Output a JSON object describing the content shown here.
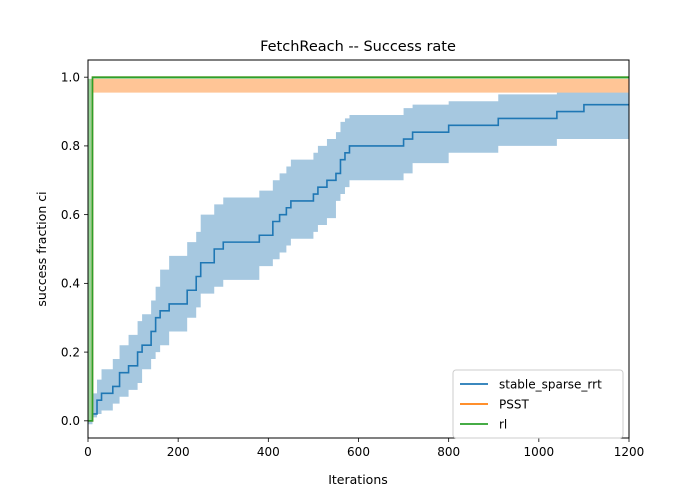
{
  "chart_data": {
    "type": "line",
    "title": "FetchReach -- Success rate",
    "xlabel": "Iterations",
    "ylabel": "success fraction ci",
    "xlim": [
      0,
      1200
    ],
    "ylim": [
      -0.05,
      1.05
    ],
    "xticks": [
      0,
      200,
      400,
      600,
      800,
      1000,
      1200
    ],
    "yticks": [
      0.0,
      0.2,
      0.4,
      0.6,
      0.8,
      1.0
    ],
    "xtick_labels": [
      "0",
      "200",
      "400",
      "600",
      "800",
      "1000",
      "1200"
    ],
    "ytick_labels": [
      "0.0",
      "0.2",
      "0.4",
      "0.6",
      "0.8",
      "1.0"
    ],
    "grid": false,
    "legend_position": "lower-right",
    "series": [
      {
        "name": "stable_sparse_rrt",
        "color": "#1f77b4",
        "band_color": "#a6c8e0",
        "step": true,
        "points": [
          [
            0,
            0.0
          ],
          [
            10,
            0.02
          ],
          [
            20,
            0.06
          ],
          [
            30,
            0.08
          ],
          [
            55,
            0.1
          ],
          [
            70,
            0.14
          ],
          [
            90,
            0.16
          ],
          [
            110,
            0.2
          ],
          [
            120,
            0.22
          ],
          [
            140,
            0.26
          ],
          [
            150,
            0.3
          ],
          [
            160,
            0.32
          ],
          [
            180,
            0.34
          ],
          [
            220,
            0.38
          ],
          [
            240,
            0.42
          ],
          [
            250,
            0.46
          ],
          [
            280,
            0.5
          ],
          [
            300,
            0.52
          ],
          [
            380,
            0.54
          ],
          [
            410,
            0.58
          ],
          [
            425,
            0.6
          ],
          [
            440,
            0.62
          ],
          [
            450,
            0.64
          ],
          [
            500,
            0.66
          ],
          [
            510,
            0.68
          ],
          [
            530,
            0.7
          ],
          [
            550,
            0.72
          ],
          [
            560,
            0.76
          ],
          [
            570,
            0.78
          ],
          [
            580,
            0.8
          ],
          [
            700,
            0.82
          ],
          [
            720,
            0.84
          ],
          [
            800,
            0.86
          ],
          [
            910,
            0.88
          ],
          [
            1040,
            0.9
          ],
          [
            1100,
            0.92
          ],
          [
            1200,
            0.92
          ]
        ],
        "band": [
          [
            0,
            -0.01,
            0.04
          ],
          [
            10,
            -0.01,
            0.08
          ],
          [
            20,
            0.01,
            0.12
          ],
          [
            30,
            0.02,
            0.15
          ],
          [
            55,
            0.03,
            0.18
          ],
          [
            70,
            0.05,
            0.22
          ],
          [
            90,
            0.07,
            0.25
          ],
          [
            110,
            0.09,
            0.29
          ],
          [
            120,
            0.11,
            0.31
          ],
          [
            140,
            0.15,
            0.35
          ],
          [
            150,
            0.18,
            0.39
          ],
          [
            160,
            0.2,
            0.44
          ],
          [
            180,
            0.22,
            0.48
          ],
          [
            220,
            0.26,
            0.52
          ],
          [
            240,
            0.3,
            0.55
          ],
          [
            250,
            0.33,
            0.6
          ],
          [
            280,
            0.37,
            0.63
          ],
          [
            300,
            0.39,
            0.65
          ],
          [
            380,
            0.41,
            0.67
          ],
          [
            410,
            0.45,
            0.7
          ],
          [
            425,
            0.47,
            0.72
          ],
          [
            440,
            0.49,
            0.74
          ],
          [
            450,
            0.51,
            0.76
          ],
          [
            500,
            0.53,
            0.78
          ],
          [
            510,
            0.55,
            0.8
          ],
          [
            530,
            0.57,
            0.82
          ],
          [
            550,
            0.59,
            0.84
          ],
          [
            560,
            0.64,
            0.87
          ],
          [
            570,
            0.66,
            0.88
          ],
          [
            580,
            0.68,
            0.89
          ],
          [
            700,
            0.7,
            0.91
          ],
          [
            720,
            0.72,
            0.92
          ],
          [
            800,
            0.75,
            0.93
          ],
          [
            910,
            0.78,
            0.95
          ],
          [
            1040,
            0.8,
            0.96
          ],
          [
            1100,
            0.82,
            0.96
          ],
          [
            1200,
            0.82,
            0.96
          ]
        ]
      },
      {
        "name": "PSST",
        "color": "#ff7f0e",
        "band_color": "#ffc596",
        "step": true,
        "points": [
          [
            0,
            0.0
          ],
          [
            10,
            1.0
          ],
          [
            1200,
            1.0
          ]
        ],
        "band": [
          [
            0,
            0.0,
            0.0
          ],
          [
            10,
            0.955,
            1.0
          ],
          [
            1200,
            0.955,
            1.0
          ]
        ]
      },
      {
        "name": "rl",
        "color": "#2ca02c",
        "band_color": "#98d598",
        "step": true,
        "points": [
          [
            0,
            0.0
          ],
          [
            10,
            1.0
          ],
          [
            1200,
            1.0
          ]
        ],
        "band": [
          [
            0,
            0.0,
            0.0
          ],
          [
            10,
            0.995,
            1.0
          ],
          [
            1200,
            0.995,
            1.0
          ]
        ]
      }
    ]
  }
}
